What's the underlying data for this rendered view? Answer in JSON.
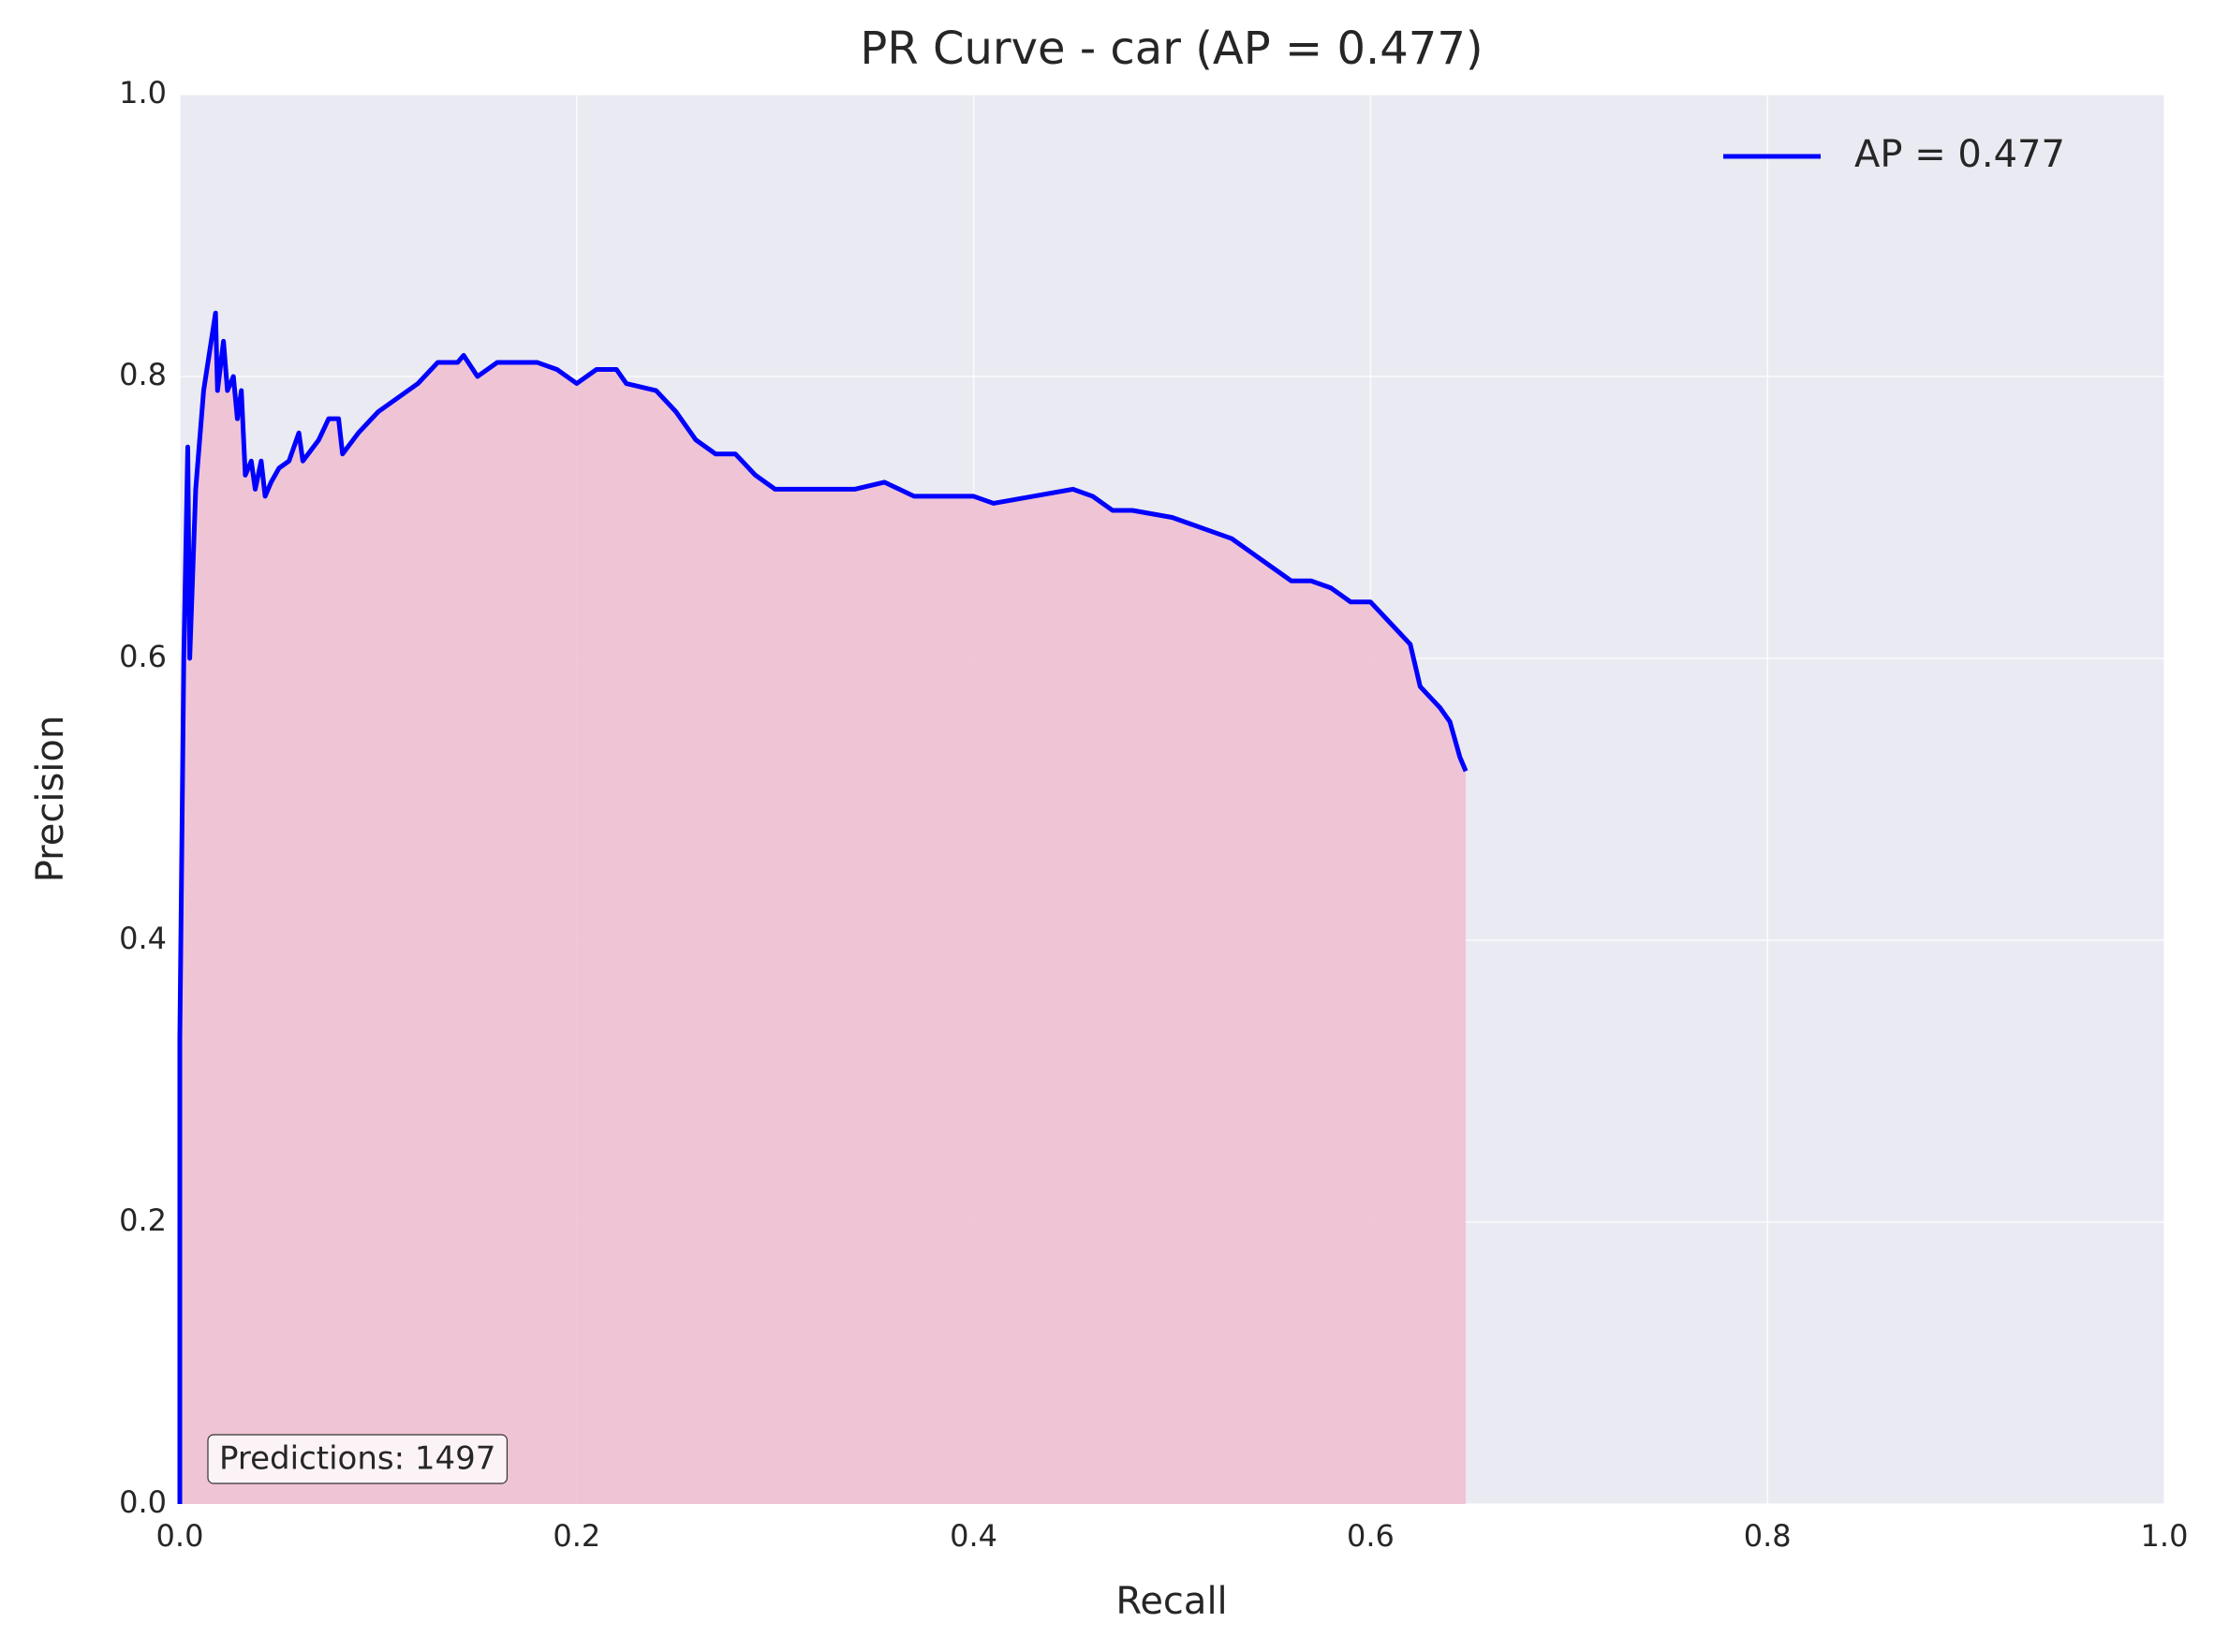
{
  "chart_data": {
    "type": "line",
    "title": "PR Curve - car (AP = 0.477)",
    "x_label": "Recall",
    "y_label": "Precision",
    "xlim": [
      0,
      1
    ],
    "ylim": [
      0,
      1
    ],
    "xticks": [
      {
        "value": 0,
        "label": "0.0"
      },
      0.2,
      0.4,
      0.6,
      0.8,
      {
        "value": 1,
        "label": "1.0"
      }
    ],
    "yticks": [
      {
        "value": 0,
        "label": "0.0"
      },
      0.2,
      0.4,
      0.6,
      0.8,
      {
        "value": 1,
        "label": "1.0"
      }
    ],
    "grid": true,
    "legend": "upper right",
    "fill_color": "#f0c0d2",
    "annotation": "Predictions: 1497",
    "series": [
      {
        "name": "AP = 0.477",
        "color": "#0000ff",
        "x": [
          0.0,
          0.0,
          0.002,
          0.004,
          0.005,
          0.008,
          0.012,
          0.018,
          0.019,
          0.022,
          0.024,
          0.027,
          0.029,
          0.031,
          0.033,
          0.036,
          0.038,
          0.041,
          0.043,
          0.046,
          0.05,
          0.055,
          0.06,
          0.062,
          0.07,
          0.075,
          0.08,
          0.082,
          0.09,
          0.1,
          0.12,
          0.13,
          0.14,
          0.143,
          0.15,
          0.16,
          0.17,
          0.18,
          0.19,
          0.2,
          0.21,
          0.22,
          0.225,
          0.24,
          0.25,
          0.26,
          0.27,
          0.28,
          0.29,
          0.3,
          0.32,
          0.34,
          0.355,
          0.37,
          0.39,
          0.4,
          0.41,
          0.43,
          0.45,
          0.46,
          0.47,
          0.48,
          0.5,
          0.51,
          0.52,
          0.53,
          0.54,
          0.55,
          0.56,
          0.57,
          0.58,
          0.59,
          0.6,
          0.61,
          0.62,
          0.625,
          0.635,
          0.64,
          0.645,
          0.648
        ],
        "values": [
          0.0,
          0.33,
          0.6,
          0.75,
          0.6,
          0.72,
          0.79,
          0.845,
          0.79,
          0.825,
          0.79,
          0.8,
          0.77,
          0.79,
          0.73,
          0.74,
          0.72,
          0.74,
          0.715,
          0.725,
          0.735,
          0.74,
          0.76,
          0.74,
          0.755,
          0.77,
          0.77,
          0.745,
          0.76,
          0.775,
          0.795,
          0.81,
          0.81,
          0.815,
          0.8,
          0.81,
          0.81,
          0.81,
          0.805,
          0.795,
          0.805,
          0.805,
          0.795,
          0.79,
          0.775,
          0.755,
          0.745,
          0.745,
          0.73,
          0.72,
          0.72,
          0.72,
          0.725,
          0.715,
          0.715,
          0.715,
          0.71,
          0.715,
          0.72,
          0.715,
          0.705,
          0.705,
          0.7,
          0.695,
          0.69,
          0.685,
          0.675,
          0.665,
          0.655,
          0.655,
          0.65,
          0.64,
          0.64,
          0.625,
          0.61,
          0.58,
          0.565,
          0.555,
          0.53,
          0.52
        ]
      }
    ]
  }
}
